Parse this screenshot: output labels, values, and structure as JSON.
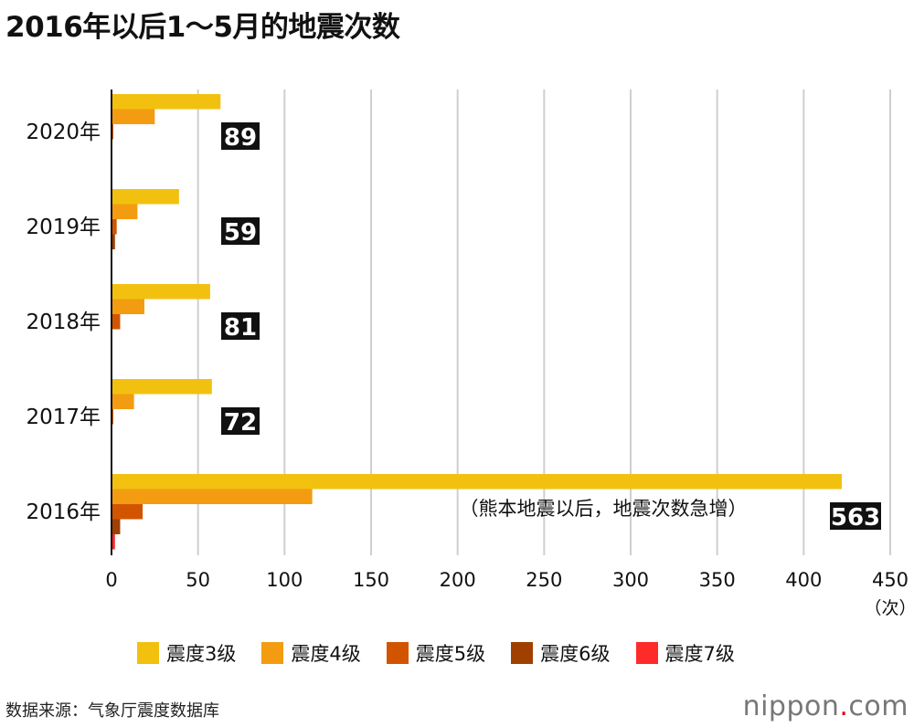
{
  "title": "2016年以后1～5月的地震次数",
  "chart_data": {
    "type": "bar",
    "orientation": "horizontal",
    "title": "2016年以后1～5月的地震次数",
    "categories": [
      "2020年",
      "2019年",
      "2018年",
      "2017年",
      "2016年"
    ],
    "series": [
      {
        "name": "震度3级",
        "color": "#f2c10f",
        "values": [
          63,
          39,
          57,
          58,
          422
        ]
      },
      {
        "name": "震度4级",
        "color": "#f39c12",
        "values": [
          25,
          15,
          19,
          13,
          116
        ]
      },
      {
        "name": "震度5级",
        "color": "#d35400",
        "values": [
          1,
          3,
          5,
          1,
          18
        ]
      },
      {
        "name": "震度6级",
        "color": "#a04000",
        "values": [
          0,
          2,
          0,
          0,
          5
        ]
      },
      {
        "name": "震度7级",
        "color": "#ff2a2a",
        "values": [
          0,
          0,
          0,
          0,
          2
        ]
      }
    ],
    "totals": [
      "89",
      "59",
      "81",
      "72",
      "563"
    ],
    "xlim": [
      0,
      450
    ],
    "xticks": [
      "0",
      "50",
      "100",
      "150",
      "200",
      "250",
      "300",
      "350",
      "400",
      "450"
    ],
    "xlabel": "（次）",
    "annotation": "（熊本地震以后，地震次数急增）",
    "grid": true,
    "legend_position": "bottom"
  },
  "source": "数据来源：气象厅震度数据库",
  "logo": {
    "text": "nippon",
    "dot": ".",
    "suffix": "com"
  }
}
